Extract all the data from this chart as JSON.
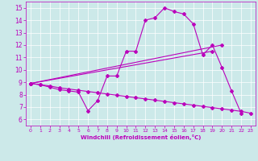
{
  "background_color": "#cce9e9",
  "grid_color": "#ffffff",
  "line_color": "#bb00bb",
  "xlabel": "Windchill (Refroidissement éolien,°C)",
  "xlim": [
    -0.5,
    23.5
  ],
  "ylim": [
    5.5,
    15.5
  ],
  "xticks": [
    0,
    1,
    2,
    3,
    4,
    5,
    6,
    7,
    8,
    9,
    10,
    11,
    12,
    13,
    14,
    15,
    16,
    17,
    18,
    19,
    20,
    21,
    22,
    23
  ],
  "yticks": [
    6,
    7,
    8,
    9,
    10,
    11,
    12,
    13,
    14,
    15
  ],
  "line1_x": [
    0,
    1,
    2,
    3,
    4,
    5,
    6,
    7,
    8,
    9,
    10,
    11,
    12,
    13,
    14,
    15,
    16,
    17,
    18,
    19,
    20,
    21,
    22
  ],
  "line1_y": [
    8.9,
    8.8,
    8.6,
    8.4,
    8.3,
    8.2,
    6.7,
    7.5,
    9.5,
    9.5,
    11.5,
    11.5,
    14.0,
    14.2,
    15.0,
    14.7,
    14.5,
    13.7,
    11.2,
    12.0,
    10.2,
    8.3,
    6.5
  ],
  "line2_x": [
    0,
    19
  ],
  "line2_y": [
    8.9,
    11.5
  ],
  "line3_x": [
    0,
    20
  ],
  "line3_y": [
    8.9,
    12.0
  ],
  "line4_x": [
    0,
    1,
    2,
    3,
    4,
    5,
    6,
    7,
    8,
    9,
    10,
    11,
    12,
    13,
    14,
    15,
    16,
    17,
    18,
    19,
    20,
    21,
    22,
    23
  ],
  "line4_y": [
    8.9,
    8.8,
    8.7,
    8.55,
    8.45,
    8.35,
    8.25,
    8.15,
    8.05,
    7.95,
    7.85,
    7.75,
    7.65,
    7.55,
    7.45,
    7.35,
    7.25,
    7.15,
    7.05,
    6.95,
    6.85,
    6.75,
    6.65,
    6.5
  ]
}
